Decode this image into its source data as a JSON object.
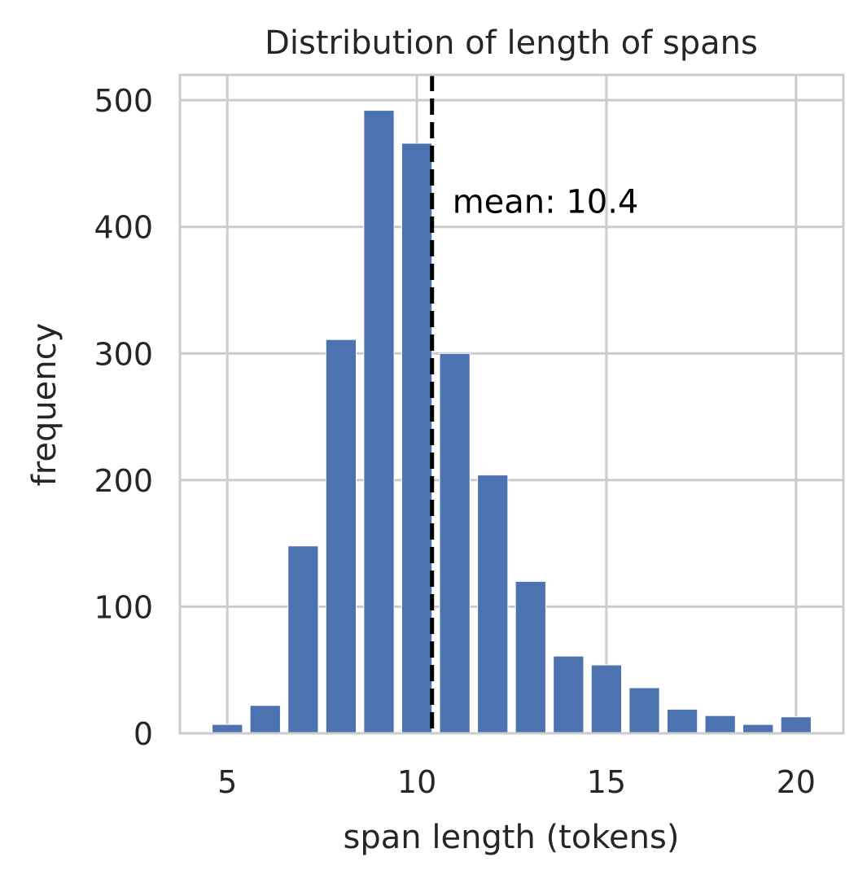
{
  "chart_data": {
    "type": "bar",
    "title": "Distribution of length of spans",
    "xlabel": "span length (tokens)",
    "ylabel": "frequency",
    "x": [
      5,
      6,
      7,
      8,
      9,
      10,
      11,
      12,
      13,
      14,
      15,
      16,
      17,
      18,
      19,
      20
    ],
    "values": [
      7,
      22,
      148,
      311,
      492,
      466,
      300,
      204,
      120,
      61,
      54,
      36,
      19,
      14,
      7,
      13
    ],
    "xlim": [
      3.75,
      21.25
    ],
    "ylim": [
      0,
      520
    ],
    "xticks": [
      "5",
      "10",
      "15",
      "20"
    ],
    "yticks": [
      "0",
      "100",
      "200",
      "300",
      "400",
      "500"
    ],
    "grid": true,
    "bar_color": "#4c72b0",
    "mean_line": {
      "value": 10.4,
      "style": "dashed",
      "color": "#000000"
    },
    "annotation": "mean: 10.4"
  }
}
